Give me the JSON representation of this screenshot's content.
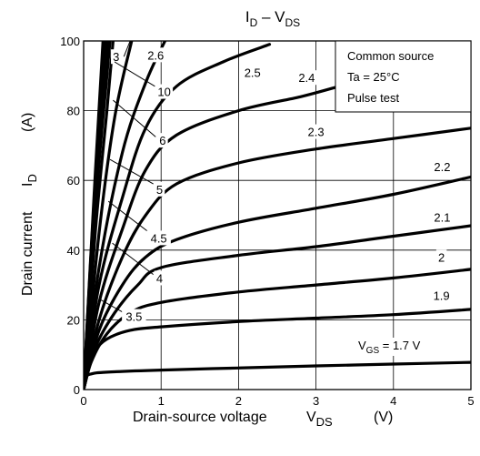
{
  "chart_data": {
    "type": "line",
    "title": {
      "main": "I",
      "sub1": "D",
      "dash": " – V",
      "sub2": "DS"
    },
    "xlabel": {
      "main": "Drain-source voltage",
      "var": "V",
      "sub": "DS",
      "unit": "(V)"
    },
    "ylabel": {
      "main": "Drain current",
      "var": "I",
      "sub": "D",
      "unit": "(A)"
    },
    "xlim": [
      0,
      5
    ],
    "ylim": [
      0,
      100
    ],
    "xticks": [
      "0",
      "1",
      "2",
      "3",
      "4",
      "5"
    ],
    "yticks": [
      "0",
      "20",
      "40",
      "60",
      "80",
      "100"
    ],
    "grid": true,
    "legend_box": [
      "Common source",
      "Ta = 25°C",
      "Pulse test"
    ],
    "series_units": "VGS (V)",
    "series": [
      {
        "name": "1.7",
        "label_display": {
          "pre": "V",
          "sub": "GS",
          "post": " = 1.7 V"
        },
        "points": [
          [
            0,
            0
          ],
          [
            0.03,
            3.5
          ],
          [
            0.1,
            4.5
          ],
          [
            0.3,
            5
          ],
          [
            1,
            5.6
          ],
          [
            2,
            6.2
          ],
          [
            3,
            6.8
          ],
          [
            4,
            7.3
          ],
          [
            5,
            7.8
          ]
        ]
      },
      {
        "name": "1.9",
        "points": [
          [
            0,
            0
          ],
          [
            0.05,
            5
          ],
          [
            0.15,
            11
          ],
          [
            0.3,
            14.5
          ],
          [
            0.6,
            17
          ],
          [
            1,
            18
          ],
          [
            2,
            19.5
          ],
          [
            3,
            20.5
          ],
          [
            4,
            21.5
          ],
          [
            5,
            23
          ]
        ]
      },
      {
        "name": "2",
        "points": [
          [
            0,
            0
          ],
          [
            0.1,
            8
          ],
          [
            0.3,
            16
          ],
          [
            0.6,
            22
          ],
          [
            1,
            25
          ],
          [
            2,
            28
          ],
          [
            3,
            30
          ],
          [
            4,
            32
          ],
          [
            5,
            34.5
          ]
        ]
      },
      {
        "name": "2.1",
        "points": [
          [
            0,
            0
          ],
          [
            0.15,
            12
          ],
          [
            0.4,
            22
          ],
          [
            0.7,
            30
          ],
          [
            1,
            35
          ],
          [
            2,
            38.5
          ],
          [
            3,
            41
          ],
          [
            4,
            44
          ],
          [
            5,
            47
          ]
        ]
      },
      {
        "name": "2.2",
        "points": [
          [
            0,
            0
          ],
          [
            0.2,
            17
          ],
          [
            0.5,
            30
          ],
          [
            0.8,
            38
          ],
          [
            1.2,
            43
          ],
          [
            2,
            48
          ],
          [
            3,
            52
          ],
          [
            4,
            56
          ],
          [
            5,
            61
          ]
        ]
      },
      {
        "name": "2.3",
        "points": [
          [
            0,
            0
          ],
          [
            0.2,
            20
          ],
          [
            0.5,
            38
          ],
          [
            0.8,
            50
          ],
          [
            1.2,
            59
          ],
          [
            2,
            65
          ],
          [
            3,
            69
          ],
          [
            4,
            72
          ],
          [
            5,
            75
          ]
        ]
      },
      {
        "name": "2.4",
        "points": [
          [
            0,
            0
          ],
          [
            0.2,
            25
          ],
          [
            0.5,
            46
          ],
          [
            0.8,
            63
          ],
          [
            1.2,
            73
          ],
          [
            2,
            80
          ],
          [
            2.8,
            84
          ],
          [
            3.3,
            87
          ]
        ]
      },
      {
        "name": "2.5",
        "points": [
          [
            0,
            0
          ],
          [
            0.2,
            30
          ],
          [
            0.5,
            55
          ],
          [
            0.8,
            75
          ],
          [
            1.2,
            87
          ],
          [
            1.8,
            94
          ],
          [
            2.4,
            99
          ]
        ]
      },
      {
        "name": "2.6",
        "points": [
          [
            0,
            0
          ],
          [
            0.2,
            35
          ],
          [
            0.5,
            68
          ],
          [
            0.8,
            88
          ],
          [
            1.05,
            100
          ]
        ]
      },
      {
        "name": "3",
        "points": [
          [
            0,
            0
          ],
          [
            0.2,
            45
          ],
          [
            0.4,
            78
          ],
          [
            0.62,
            100
          ]
        ]
      },
      {
        "name": "3.5",
        "points": [
          [
            0,
            0
          ],
          [
            0.15,
            45
          ],
          [
            0.3,
            80
          ],
          [
            0.38,
            100
          ]
        ]
      },
      {
        "name": "4",
        "points": [
          [
            0,
            0
          ],
          [
            0.15,
            52
          ],
          [
            0.3,
            90
          ],
          [
            0.34,
            100
          ]
        ]
      },
      {
        "name": "4.5",
        "points": [
          [
            0,
            0
          ],
          [
            0.15,
            56
          ],
          [
            0.3,
            97
          ],
          [
            0.31,
            100
          ]
        ]
      },
      {
        "name": "5",
        "points": [
          [
            0,
            0
          ],
          [
            0.15,
            58
          ],
          [
            0.29,
            100
          ]
        ]
      },
      {
        "name": "6",
        "points": [
          [
            0,
            0
          ],
          [
            0.15,
            60
          ],
          [
            0.27,
            100
          ]
        ]
      },
      {
        "name": "10",
        "points": [
          [
            0,
            0
          ],
          [
            0.15,
            62
          ],
          [
            0.25,
            100
          ]
        ]
      }
    ],
    "annotations": [
      {
        "text": "3",
        "x": 0.42,
        "y": 95.5,
        "leader": [
          [
            0.52,
            95.5
          ],
          [
            0.6,
            100
          ]
        ]
      },
      {
        "text": "2.6",
        "x": 0.93,
        "y": 96
      },
      {
        "text": "2.5",
        "x": 2.18,
        "y": 91
      },
      {
        "text": "2.4",
        "x": 2.88,
        "y": 89.5
      },
      {
        "text": "10",
        "x": 1.04,
        "y": 85.5,
        "leader": [
          [
            0.92,
            87
          ],
          [
            0.4,
            94
          ]
        ]
      },
      {
        "text": "6",
        "x": 1.02,
        "y": 71.5,
        "leader": [
          [
            0.93,
            72.5
          ],
          [
            0.38,
            83
          ]
        ]
      },
      {
        "text": "2.3",
        "x": 3.0,
        "y": 74
      },
      {
        "text": "5",
        "x": 0.98,
        "y": 57.5,
        "leader": [
          [
            0.9,
            59
          ],
          [
            0.34,
            66
          ]
        ]
      },
      {
        "text": "2.2",
        "x": 4.63,
        "y": 64
      },
      {
        "text": "4.5",
        "x": 0.97,
        "y": 43.5,
        "leader": [
          [
            0.85,
            45
          ],
          [
            0.32,
            54
          ]
        ]
      },
      {
        "text": "2.1",
        "x": 4.63,
        "y": 49.5
      },
      {
        "text": "2",
        "x": 4.62,
        "y": 38
      },
      {
        "text": "4",
        "x": 0.98,
        "y": 32,
        "leader": [
          [
            0.9,
            33
          ],
          [
            0.37,
            42
          ]
        ]
      },
      {
        "text": "1.9",
        "x": 4.62,
        "y": 27
      },
      {
        "text": "3.5",
        "x": 0.65,
        "y": 21,
        "leader": [
          [
            0.52,
            22
          ],
          [
            0.2,
            26
          ]
        ]
      }
    ]
  }
}
